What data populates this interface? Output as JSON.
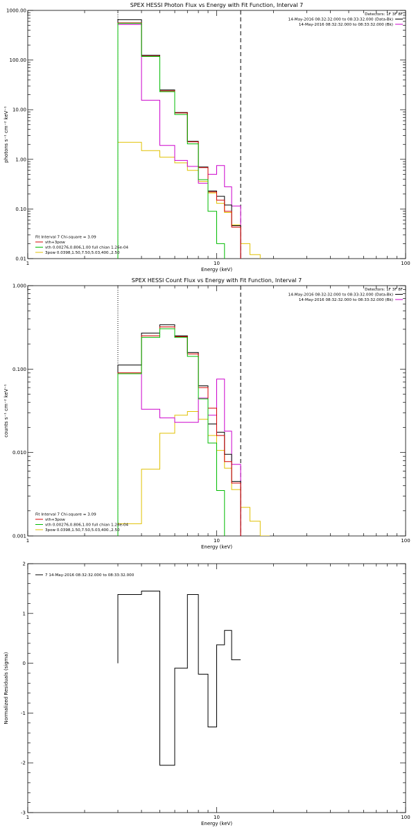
{
  "chart_data": [
    {
      "type": "line",
      "title": "SPEX HESSI Photon Flux vs Energy with Fit Function, Interval 7",
      "xlabel": "Energy (keV)",
      "ylabel": "photons s⁻¹ cm⁻² keV⁻¹",
      "xscale": "log",
      "yscale": "log",
      "xlim": [
        1,
        100
      ],
      "ylim": [
        0.01,
        1000
      ],
      "xticks": [
        "1",
        "10",
        "100"
      ],
      "yticks": [
        "0.01",
        "0.10",
        "1.00",
        "10.00",
        "100.00",
        "1000.00"
      ],
      "legend_topright": [
        {
          "text": "Detectors: 1F 3F 8F",
          "color": ""
        },
        {
          "text": "14-May-2016 08:32:32.000 to 08:33:32.000 (Data-Bk)",
          "color": "#000000"
        },
        {
          "text": "14-May-2016 08:32:32.000 to 08:33:32.000 (Bk)",
          "color": "#cc00cc"
        }
      ],
      "legend_bottomleft": [
        {
          "text": "Fit Interval 7   Chi-square = 3.09",
          "color": ""
        },
        {
          "text": "vth+3pow",
          "color": "#d40000"
        },
        {
          "text": "vth 0.00276,0.806,1.00  full chian 1.26e-04",
          "color": "#00bb00"
        },
        {
          "text": "3pow 0.0398,1.50,7.50,5.03,400.,2.50",
          "color": "#e0c000"
        }
      ],
      "vlines": [
        {
          "x": 3,
          "style": "dotted"
        },
        {
          "x": 13.4,
          "style": "dashed"
        }
      ],
      "edges": [
        3,
        4,
        5,
        6,
        7,
        8,
        9,
        10,
        11,
        12,
        13.4,
        15,
        17
      ],
      "series": [
        {
          "name": "Data-Bk",
          "color": "#000000",
          "values": [
            650,
            125,
            25,
            8.8,
            2.3,
            0.7,
            0.23,
            0.18,
            0.12,
            0.046
          ]
        },
        {
          "name": "vth+3pow",
          "color": "#d40000",
          "values": [
            560,
            120,
            24,
            8.6,
            2.25,
            0.68,
            0.22,
            0.15,
            0.09,
            0.043
          ]
        },
        {
          "name": "vth",
          "color": "#00bb00",
          "values": [
            550,
            118,
            23,
            8.0,
            2.05,
            0.39,
            0.09,
            0.02,
            0.0,
            0.0
          ]
        },
        {
          "name": "3pow",
          "color": "#e0c000",
          "values": [
            2.2,
            1.5,
            1.1,
            0.85,
            0.6,
            0.36,
            0.21,
            0.13,
            0.085,
            0.048,
            0.02,
            0.012
          ]
        },
        {
          "name": "Bk",
          "color": "#cc00cc",
          "values": [
            520,
            15.5,
            1.9,
            0.95,
            0.72,
            0.33,
            0.5,
            0.75,
            0.28,
            0.115
          ]
        }
      ]
    },
    {
      "type": "line",
      "title": "SPEX HESSI Count Flux vs Energy with Fit Function, Interval 7",
      "xlabel": "Energy (keV)",
      "ylabel": "counts s⁻¹ cm⁻² keV⁻¹",
      "xscale": "log",
      "yscale": "log",
      "xlim": [
        1,
        100
      ],
      "ylim": [
        0.001,
        1
      ],
      "xticks": [
        "1",
        "10",
        "100"
      ],
      "yticks": [
        "0.001",
        "0.010",
        "0.100",
        "1.000"
      ],
      "legend_topright": [
        {
          "text": "Detectors: 1F 3F 8F",
          "color": ""
        },
        {
          "text": "14-May-2016 08:32:32.000 to 08:33:32.000 (Data-Bk)",
          "color": "#000000"
        },
        {
          "text": "14-May-2016 08:32:32.000 to 08:33:32.000 (Bk)",
          "color": "#cc00cc"
        }
      ],
      "legend_bottomleft": [
        {
          "text": "Fit Interval 7   Chi-square = 3.09",
          "color": ""
        },
        {
          "text": "vth+3pow",
          "color": "#d40000"
        },
        {
          "text": "vth 0.00276,0.806,1.00  full chian 1.26e-04",
          "color": "#00bb00"
        },
        {
          "text": "3pow 0.0398,1.50,7.50,5.03,400.,2.50",
          "color": "#e0c000"
        }
      ],
      "vlines": [
        {
          "x": 3,
          "style": "dotted"
        },
        {
          "x": 13.4,
          "style": "dashed"
        }
      ],
      "edges": [
        3,
        4,
        5,
        6,
        7,
        8,
        9,
        10,
        11,
        12,
        13.4,
        15,
        17,
        19
      ],
      "series": [
        {
          "name": "Data-Bk",
          "color": "#000000",
          "values": [
            0.112,
            0.27,
            0.34,
            0.25,
            0.158,
            0.063,
            0.022,
            0.0175,
            0.0095,
            0.0045
          ]
        },
        {
          "name": "vth+3pow",
          "color": "#d40000",
          "values": [
            0.09,
            0.25,
            0.32,
            0.245,
            0.152,
            0.06,
            0.034,
            0.016,
            0.0078,
            0.0043
          ]
        },
        {
          "name": "vth",
          "color": "#00bb00",
          "values": [
            0.088,
            0.24,
            0.305,
            0.24,
            0.142,
            0.044,
            0.013,
            0.0035,
            0.0,
            0.0
          ]
        },
        {
          "name": "3pow",
          "color": "#e0c000",
          "values": [
            0.0014,
            0.0063,
            0.017,
            0.028,
            0.031,
            0.025,
            0.016,
            0.0106,
            0.0065,
            0.0036,
            0.0022,
            0.0015,
            0.001
          ]
        },
        {
          "name": "Bk",
          "color": "#cc00cc",
          "values": [
            0.088,
            0.033,
            0.026,
            0.023,
            0.023,
            0.045,
            0.028,
            0.076,
            0.018,
            0.0072
          ]
        }
      ]
    },
    {
      "type": "line",
      "title": "",
      "xlabel": "Energy (keV)",
      "ylabel": "Normalized Residuals (sigma)",
      "xscale": "log",
      "yscale": "linear",
      "xlim": [
        1,
        100
      ],
      "ylim": [
        -3,
        2
      ],
      "xticks": [
        "1",
        "10",
        "100"
      ],
      "yticks": [
        "-3",
        "-2",
        "-1",
        "0",
        "1",
        "2"
      ],
      "legend_topleft": [
        {
          "text": "7  14-May-2016 08:32:32.000 to 08:33:32.000",
          "color": "#000000"
        }
      ],
      "edges": [
        3,
        4,
        5,
        6,
        7,
        8,
        9,
        10,
        11,
        12,
        13.4
      ],
      "series": [
        {
          "name": "residuals",
          "color": "#000000",
          "values": [
            1.38,
            1.45,
            -2.05,
            -0.1,
            1.38,
            -0.22,
            -1.28,
            0.37,
            0.66,
            0.07
          ]
        }
      ]
    }
  ]
}
